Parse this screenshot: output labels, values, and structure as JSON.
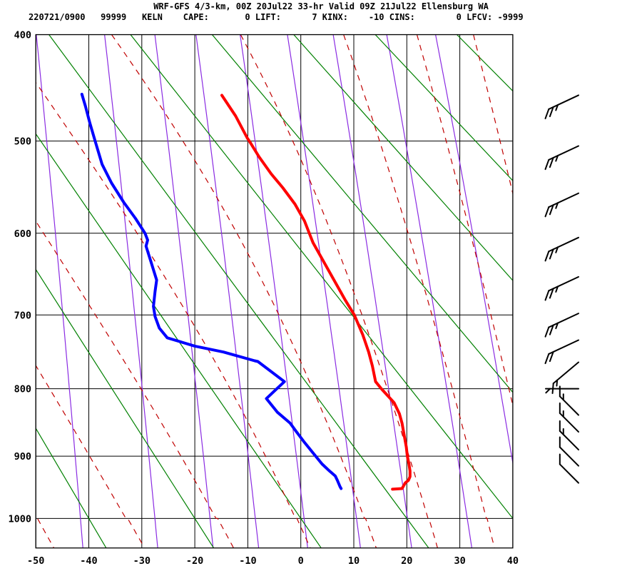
{
  "header": {
    "line1": "WRF-GFS 4/3-km, 00Z 20Jul22 33-hr Valid 09Z 21Jul22 Ellensburg WA",
    "line2": "220721/0900   99999   KELN    CAPE:       0 LIFT:      7 KINX:    -10 CINS:        0 LFCV: -9999"
  },
  "station": {
    "id": "KELN",
    "name": "Ellensburg WA",
    "cape": 0,
    "lift": 7,
    "kinx": -10,
    "cins": 0,
    "lfcv": -9999
  },
  "chart_data": {
    "type": "sounding_stuve",
    "title": "WRF-GFS 4/3-km, 00Z 20Jul22 33-hr Valid 09Z 21Jul22 Ellensburg WA",
    "x_axis": {
      "unit": "C",
      "range": [
        -50,
        40
      ],
      "ticks": [
        -50,
        -40,
        -30,
        -20,
        -10,
        0,
        10,
        20,
        30,
        40
      ]
    },
    "y_axis": {
      "unit": "hPa",
      "range": [
        400,
        1050
      ],
      "scale": "p^0.2857",
      "ticks": [
        400,
        500,
        600,
        700,
        800,
        900,
        1000
      ]
    },
    "grid": true,
    "colors": {
      "grid": "#000000",
      "dry_adiabat": "#008000",
      "moist_adiabat": "#c00000",
      "mixing_ratio": "#8a2be2",
      "temperature": "#ff0000",
      "dewpoint": "#0000ff",
      "barb": "#000000"
    },
    "dry_adiabats_theta_c": [
      -40,
      -20,
      0,
      20,
      40,
      60,
      80,
      100,
      120
    ],
    "moist_adiabats_thetaw_c": [
      -50,
      -33,
      -16,
      -1,
      12,
      24,
      35,
      45,
      54
    ],
    "mixing_ratio_g_kg": [
      0.1,
      0.4,
      1,
      2,
      4,
      8,
      15,
      30,
      55
    ],
    "temperature_trace_p_t": [
      [
        455,
        -14.9
      ],
      [
        475,
        -12.3
      ],
      [
        497,
        -10.1
      ],
      [
        500,
        -9.7
      ],
      [
        516,
        -7.9
      ],
      [
        534,
        -5.6
      ],
      [
        549,
        -3.4
      ],
      [
        567,
        -1.1
      ],
      [
        586,
        0.7
      ],
      [
        600,
        1.6
      ],
      [
        611,
        2.3
      ],
      [
        680,
        8.3
      ],
      [
        700,
        10.1
      ],
      [
        726,
        11.7
      ],
      [
        749,
        12.8
      ],
      [
        768,
        13.5
      ],
      [
        790,
        14.1
      ],
      [
        800,
        15.2
      ],
      [
        810,
        16.4
      ],
      [
        820,
        17.6
      ],
      [
        836,
        18.6
      ],
      [
        850,
        19.1
      ],
      [
        868,
        19.5
      ],
      [
        886,
        19.9
      ],
      [
        900,
        20.1
      ],
      [
        912,
        20.4
      ],
      [
        923,
        20.6
      ],
      [
        932,
        20.6
      ],
      [
        938,
        20.3
      ],
      [
        942,
        19.7
      ],
      [
        951,
        19.1
      ],
      [
        952,
        17.3
      ]
    ],
    "dewpoint_trace_p_t": [
      [
        454,
        -41.3
      ],
      [
        466,
        -40.6
      ],
      [
        482,
        -39.8
      ],
      [
        500,
        -38.8
      ],
      [
        524,
        -37.5
      ],
      [
        544,
        -35.7
      ],
      [
        565,
        -33.4
      ],
      [
        583,
        -31.2
      ],
      [
        600,
        -29.4
      ],
      [
        608,
        -28.9
      ],
      [
        615,
        -29.2
      ],
      [
        633,
        -28.3
      ],
      [
        656,
        -27.2
      ],
      [
        670,
        -27.5
      ],
      [
        689,
        -27.8
      ],
      [
        702,
        -27.5
      ],
      [
        717,
        -26.7
      ],
      [
        730,
        -25.2
      ],
      [
        741,
        -20.0
      ],
      [
        749,
        -14.6
      ],
      [
        761,
        -8.7
      ],
      [
        762,
        -8.1
      ],
      [
        790,
        -3.1
      ],
      [
        814,
        -6.5
      ],
      [
        834,
        -4.4
      ],
      [
        850,
        -2.0
      ],
      [
        862,
        -0.9
      ],
      [
        879,
        0.7
      ],
      [
        897,
        2.5
      ],
      [
        912,
        4.0
      ],
      [
        923,
        5.4
      ],
      [
        931,
        6.5
      ],
      [
        938,
        6.9
      ],
      [
        948,
        7.4
      ],
      [
        951,
        7.6
      ]
    ],
    "wind_barbs": [
      {
        "p": 455,
        "speed_kt": 25,
        "dir_deg": 245
      },
      {
        "p": 505,
        "speed_kt": 25,
        "dir_deg": 245
      },
      {
        "p": 555,
        "speed_kt": 25,
        "dir_deg": 245
      },
      {
        "p": 605,
        "speed_kt": 25,
        "dir_deg": 245
      },
      {
        "p": 652,
        "speed_kt": 25,
        "dir_deg": 245
      },
      {
        "p": 698,
        "speed_kt": 25,
        "dir_deg": 245
      },
      {
        "p": 733,
        "speed_kt": 20,
        "dir_deg": 245
      },
      {
        "p": 763,
        "speed_kt": 15,
        "dir_deg": 230
      },
      {
        "p": 800,
        "speed_kt": 5,
        "dir_deg": 270
      },
      {
        "p": 838,
        "speed_kt": 15,
        "dir_deg": 315
      },
      {
        "p": 863,
        "speed_kt": 15,
        "dir_deg": 315
      },
      {
        "p": 890,
        "speed_kt": 15,
        "dir_deg": 315
      },
      {
        "p": 915,
        "speed_kt": 10,
        "dir_deg": 315
      },
      {
        "p": 942,
        "speed_kt": 10,
        "dir_deg": 315
      }
    ]
  }
}
